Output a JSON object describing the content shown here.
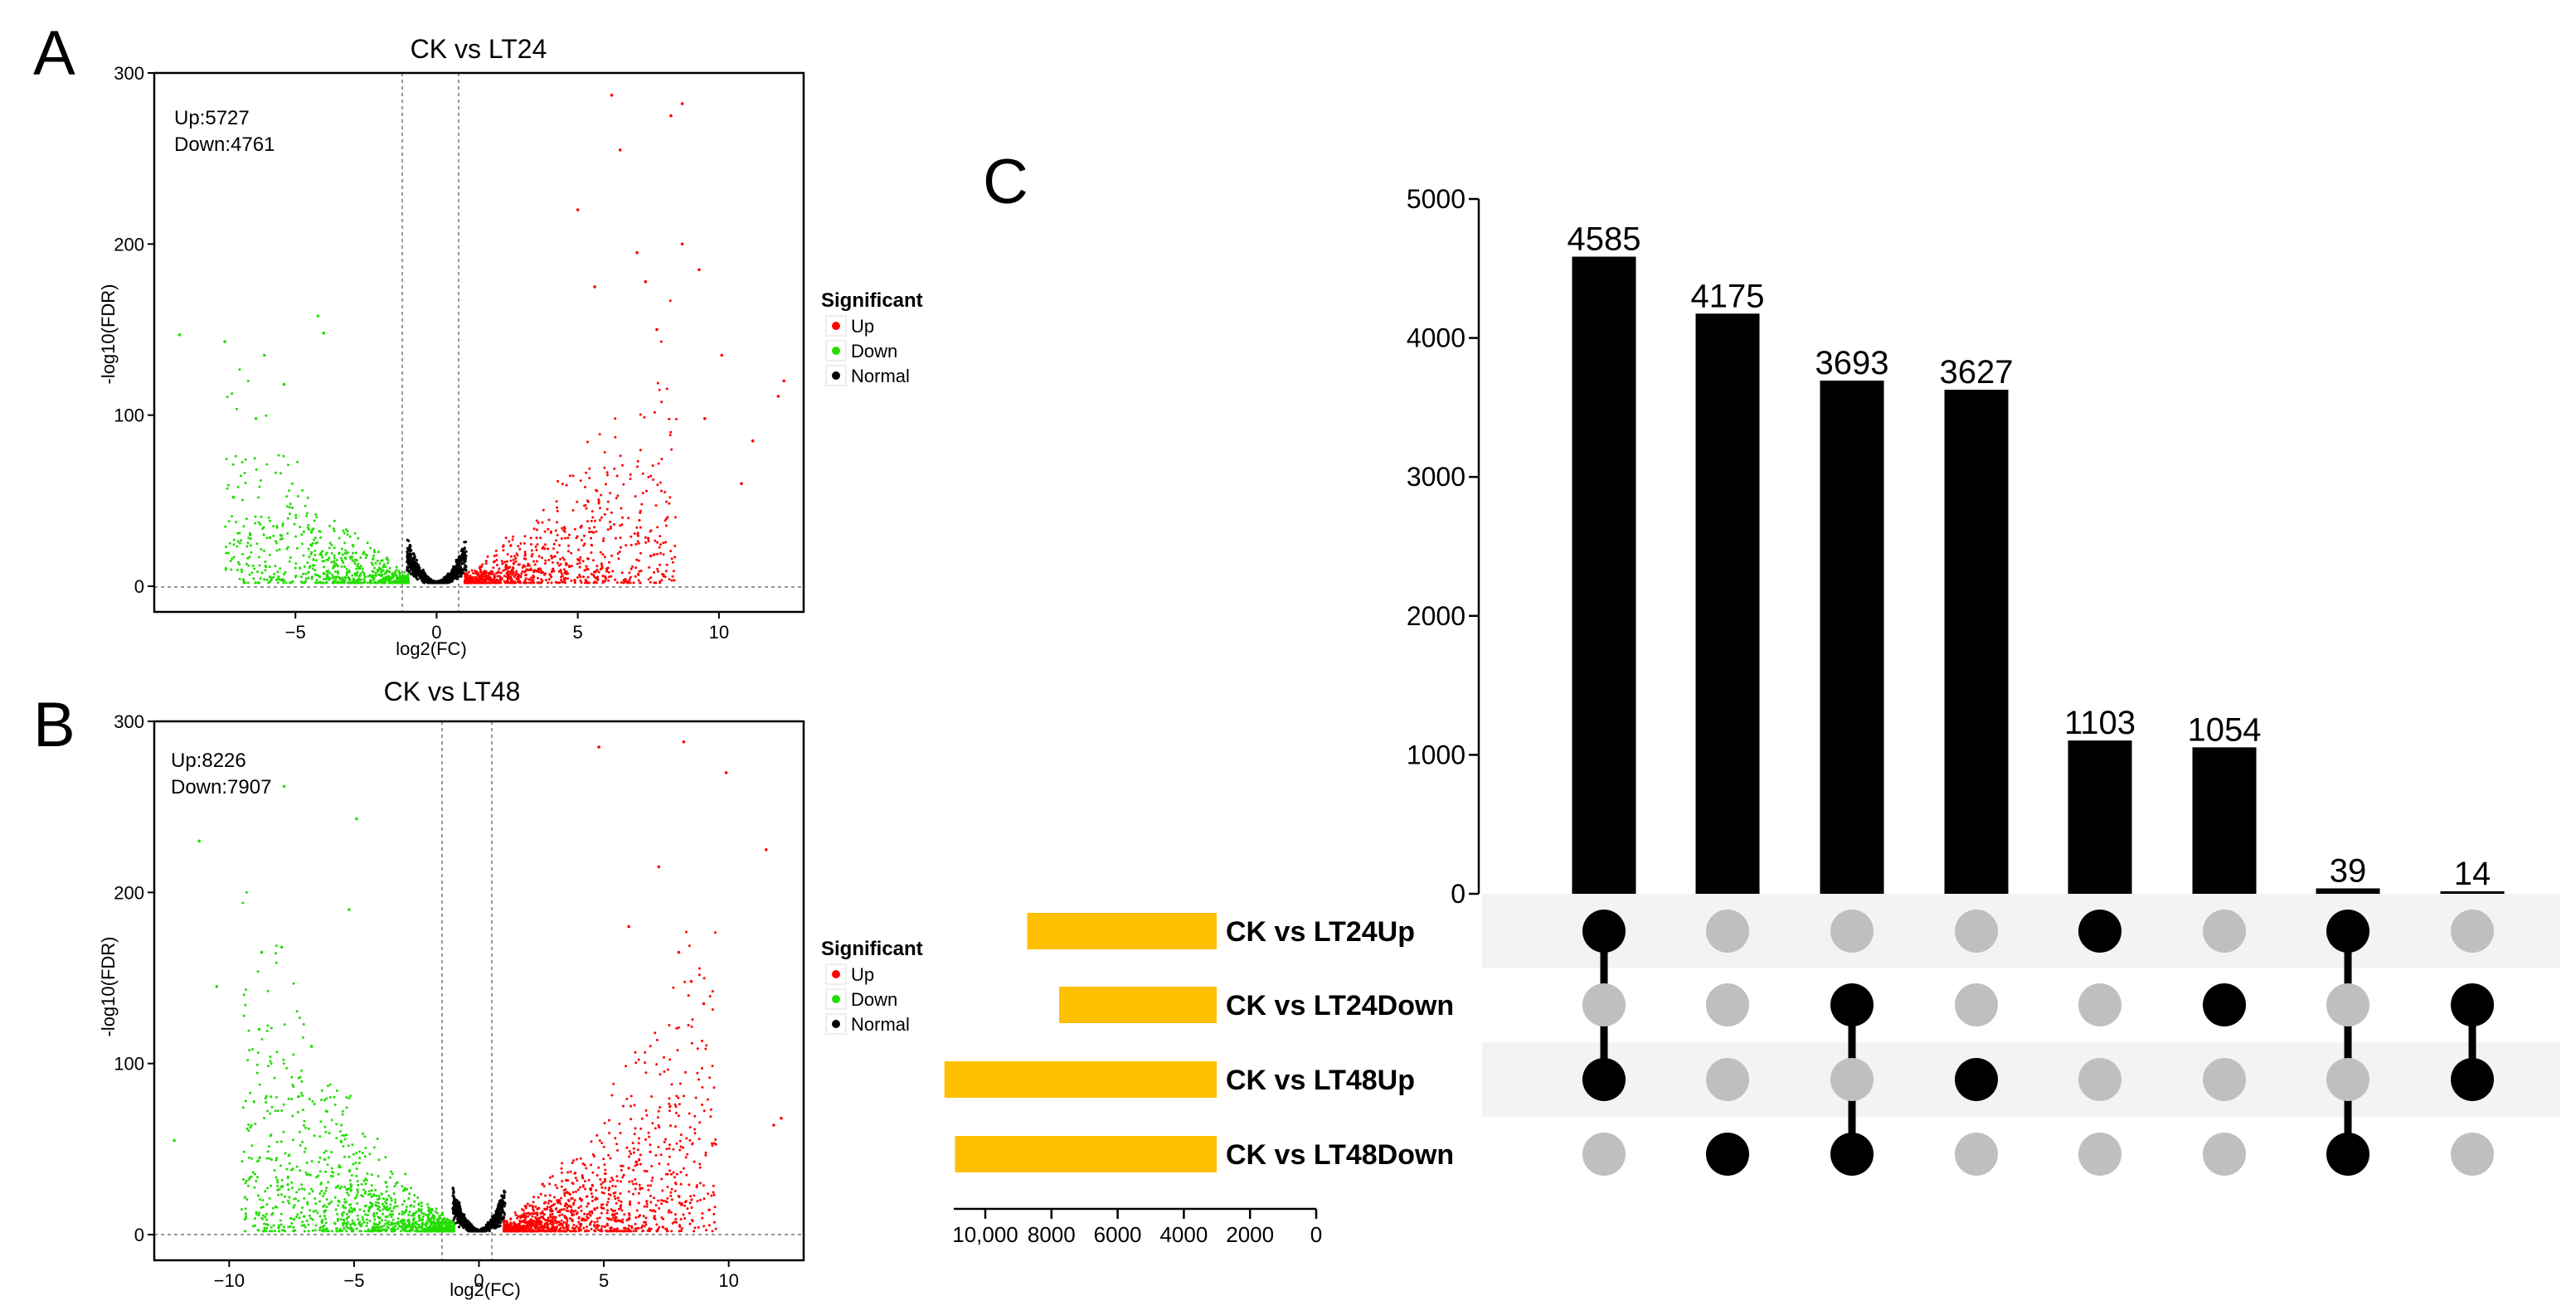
{
  "panel_letters": [
    "A",
    "B",
    "C"
  ],
  "colors": {
    "up": "#ff0000",
    "down": "#22dd00",
    "normal": "#000000",
    "bar": "#000000",
    "set_bar": "#ffc000",
    "dot_active": "#000000",
    "dot_inactive": "#bfbfbf",
    "row_stripe": "#f3f3f3"
  },
  "chart_data": [
    {
      "type": "scatter",
      "panel": "A",
      "title": "CK vs LT24",
      "xlabel": "log2(FC)",
      "ylabel": "-log10(FDR)",
      "xlim": [
        -10,
        13
      ],
      "ylim": [
        -15,
        300
      ],
      "xticks": [
        -5,
        0,
        5,
        10
      ],
      "yticks": [
        0,
        100,
        200,
        300
      ],
      "fc_threshold": [
        -1,
        1
      ],
      "fdr_threshold": 0,
      "annotations": [
        "Up:5727",
        "Down:4761"
      ],
      "up_count": 5727,
      "down_count": 4761,
      "legend": {
        "title": "Significant",
        "items": [
          "Up",
          "Down",
          "Normal"
        ]
      },
      "outliers": [
        [
          6.2,
          287
        ],
        [
          8.7,
          282
        ],
        [
          8.3,
          275
        ],
        [
          6.5,
          255
        ],
        [
          5.0,
          220
        ],
        [
          8.7,
          200
        ],
        [
          9.3,
          185
        ],
        [
          7.1,
          195
        ],
        [
          7.4,
          178
        ],
        [
          5.6,
          175
        ],
        [
          12.3,
          120
        ],
        [
          12.1,
          111
        ],
        [
          -9.1,
          147
        ],
        [
          -7.5,
          143
        ],
        [
          -6.1,
          135
        ],
        [
          -4.2,
          158
        ],
        [
          -4.0,
          148
        ],
        [
          -5.4,
          118
        ],
        [
          -6.4,
          98
        ],
        [
          10.1,
          135
        ],
        [
          9.5,
          98
        ],
        [
          11.2,
          85
        ],
        [
          10.8,
          60
        ],
        [
          7.8,
          150
        ],
        [
          -7.2,
          52
        ],
        [
          -6.6,
          30
        ]
      ]
    },
    {
      "type": "scatter",
      "panel": "B",
      "title": "CK vs LT48",
      "xlabel": "log2(FC)",
      "ylabel": "-log10(FDR)",
      "xlim": [
        -13,
        13
      ],
      "ylim": [
        -15,
        300
      ],
      "xticks": [
        -10,
        -5,
        0,
        5,
        10
      ],
      "yticks": [
        0,
        100,
        200,
        300
      ],
      "fc_threshold": [
        -1,
        1
      ],
      "fdr_threshold": 0,
      "annotations": [
        "Up:8226",
        "Down:7907"
      ],
      "up_count": 8226,
      "down_count": 7907,
      "legend": {
        "title": "Significant",
        "items": [
          "Up",
          "Down",
          "Normal"
        ]
      },
      "outliers": [
        [
          4.8,
          285
        ],
        [
          8.2,
          288
        ],
        [
          9.9,
          270
        ],
        [
          11.5,
          225
        ],
        [
          12.1,
          68
        ],
        [
          11.8,
          64
        ],
        [
          -11.2,
          230
        ],
        [
          -7.8,
          262
        ],
        [
          -4.9,
          243
        ],
        [
          -5.2,
          190
        ],
        [
          -7.9,
          168
        ],
        [
          -8.7,
          165
        ],
        [
          -12.2,
          55
        ],
        [
          -10.5,
          145
        ],
        [
          -8.8,
          120
        ],
        [
          8.0,
          165
        ],
        [
          8.5,
          148
        ],
        [
          9.0,
          135
        ],
        [
          7.2,
          215
        ],
        [
          6.0,
          180
        ],
        [
          -6.7,
          110
        ]
      ]
    },
    {
      "type": "bar",
      "panel": "C",
      "subtype": "upset",
      "ylim": [
        0,
        5000
      ],
      "yticks": [
        0,
        1000,
        2000,
        3000,
        4000,
        5000
      ],
      "sets": [
        "CK vs LT24Up",
        "CK vs LT24Down",
        "CK vs LT48Up",
        "CK vs LT48Down"
      ],
      "set_sizes": [
        5727,
        4761,
        8226,
        7907
      ],
      "set_axis_ticks": [
        "10,000",
        "8000",
        "6000",
        "4000",
        "2000",
        "0"
      ],
      "set_axis_max": 10000,
      "intersections": [
        {
          "value": 4585,
          "label": "4585",
          "members": [
            0,
            2
          ]
        },
        {
          "value": 4175,
          "label": "4175",
          "members": [
            3
          ]
        },
        {
          "value": 3693,
          "label": "3693",
          "members": [
            1,
            3
          ]
        },
        {
          "value": 3627,
          "label": "3627",
          "members": [
            2
          ]
        },
        {
          "value": 1103,
          "label": "1103",
          "members": [
            0
          ]
        },
        {
          "value": 1054,
          "label": "1054",
          "members": [
            1
          ]
        },
        {
          "value": 39,
          "label": "39",
          "members": [
            0,
            3
          ]
        },
        {
          "value": 14,
          "label": "14",
          "members": [
            1,
            2
          ]
        }
      ]
    }
  ]
}
